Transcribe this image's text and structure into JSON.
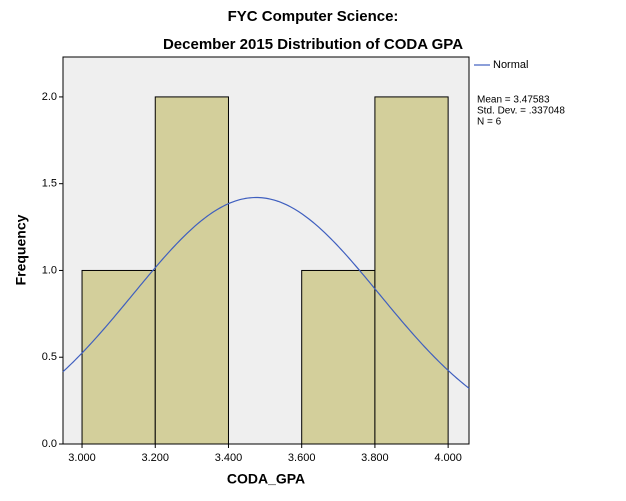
{
  "chart_data": {
    "type": "histogram",
    "title": "FYC Computer Science:",
    "subtitle": "December 2015 Distribution of CODA GPA",
    "x_label": "CODA_GPA",
    "y_label": "Frequency",
    "bins": [
      3.0,
      3.2,
      3.4,
      3.6,
      3.8,
      4.0
    ],
    "counts": [
      1,
      2,
      0,
      1,
      2
    ],
    "color": "#d3cf9b",
    "plot_background": "#efefef",
    "xlim": [
      2.948,
      4.057
    ],
    "ylim": [
      0,
      2.23
    ],
    "xticks": [
      {
        "value": 3.0,
        "label": "3.000"
      },
      {
        "value": 3.2,
        "label": "3.200"
      },
      {
        "value": 3.4,
        "label": "3.400"
      },
      {
        "value": 3.6,
        "label": "3.600"
      },
      {
        "value": 3.8,
        "label": "3.800"
      },
      {
        "value": 4.0,
        "label": "4.000"
      }
    ],
    "yticks": [
      {
        "value": 0,
        "label": "0.0"
      },
      0.5,
      {
        "value": 1,
        "label": "1.0"
      },
      1.5,
      {
        "value": 2,
        "label": "2.0"
      }
    ],
    "normal": {
      "name": "Normal",
      "color": "#3f5fbf",
      "mean": {
        "value": 3.47583,
        "label": "Mean = 3.47583"
      },
      "sd": {
        "value": 0.337048,
        "label": "Std. Dev. = .337048"
      },
      "n": {
        "value": 6,
        "label": "N = 6"
      }
    },
    "legend": "right"
  }
}
